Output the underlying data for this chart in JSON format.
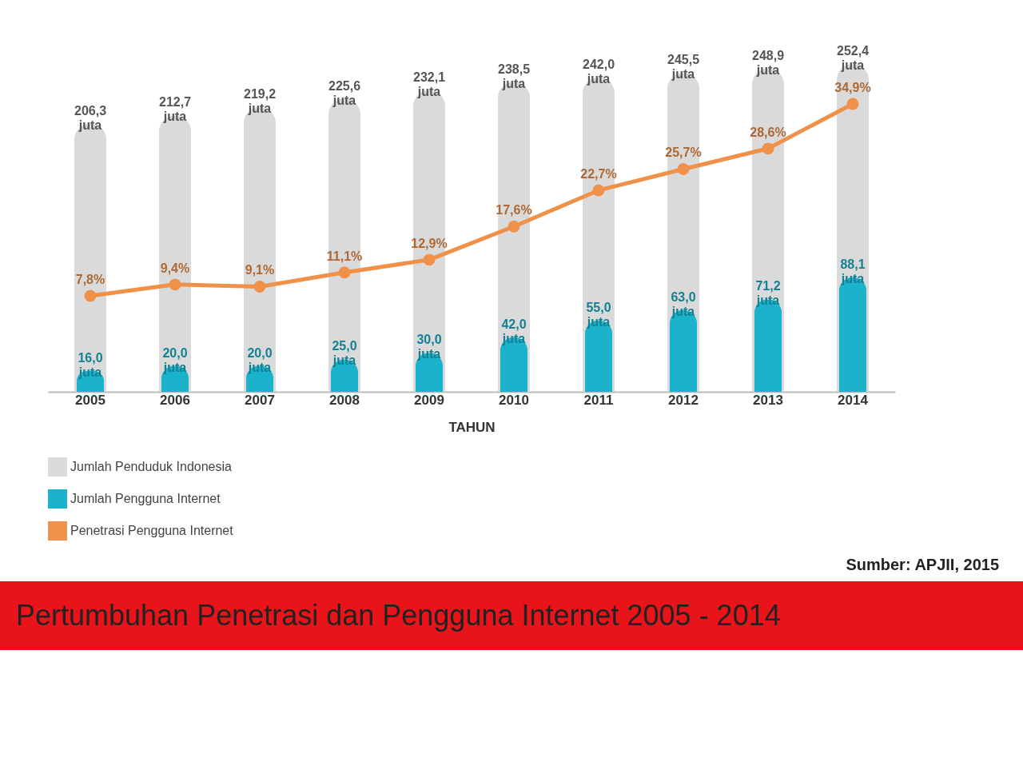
{
  "chart_data": {
    "type": "bar",
    "title": "Pertumbuhan Penetrasi dan Pengguna Internet 2005 - 2014",
    "xlabel": "TAHUN",
    "categories": [
      "2005",
      "2006",
      "2007",
      "2008",
      "2009",
      "2010",
      "2011",
      "2012",
      "2013",
      "2014"
    ],
    "series": [
      {
        "name": "Jumlah Penduduk Indonesia",
        "color": "#dadada",
        "values": [
          206.3,
          212.7,
          219.2,
          225.6,
          232.1,
          238.5,
          242.0,
          245.5,
          248.9,
          252.4
        ],
        "value_labels": [
          "206,3 juta",
          "212,7 juta",
          "219,2 juta",
          "225,6 juta",
          "232,1 juta",
          "238,5 juta",
          "242,0 juta",
          "245,5 juta",
          "248,9 juta",
          "252,4 juta"
        ]
      },
      {
        "name": "Jumlah Pengguna Internet",
        "color": "#1bb3cb",
        "values": [
          16.0,
          20.0,
          20.0,
          25.0,
          30.0,
          42.0,
          55.0,
          63.0,
          71.2,
          88.1
        ],
        "value_labels": [
          "16,0 juta",
          "20,0 juta",
          "20,0 juta",
          "25,0 juta",
          "30,0 juta",
          "42,0 juta",
          "55,0 juta",
          "63,0 juta",
          "71,2 juta",
          "88,1 juta"
        ]
      },
      {
        "name": "Penetrasi Pengguna Internet",
        "type": "line",
        "axis": "y2",
        "marker": "circle",
        "color": "#f0914a",
        "values": [
          7.8,
          9.4,
          9.1,
          11.1,
          12.9,
          17.6,
          22.7,
          25.7,
          28.6,
          34.9
        ],
        "value_labels": [
          "7,8%",
          "9,4%",
          "9,1%",
          "11,1%",
          "12,9%",
          "17,6%",
          "22,7%",
          "25,7%",
          "28,6%",
          "34,9%"
        ]
      }
    ],
    "grid": false,
    "legend": "bottom",
    "annotations": [
      "Sumber: APJII, 2015"
    ]
  }
}
